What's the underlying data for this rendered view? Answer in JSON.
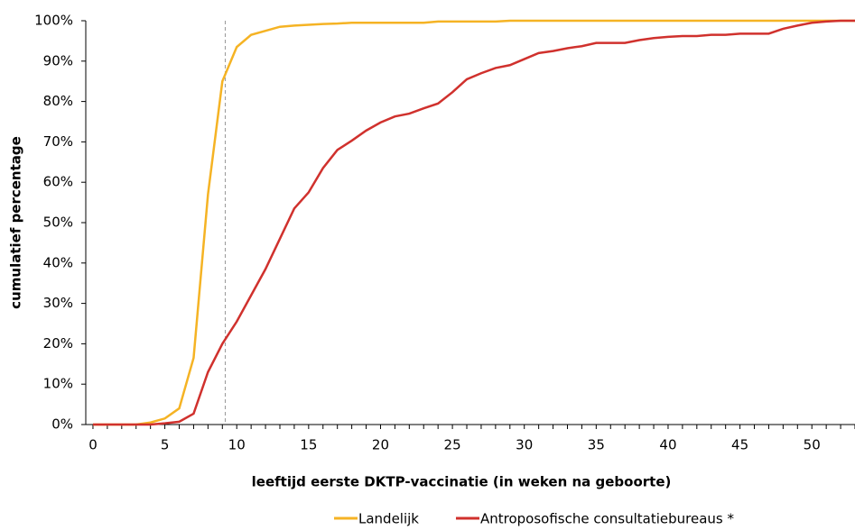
{
  "chart_data": {
    "type": "line",
    "xlabel": "leeftijd eerste DKTP-vaccinatie (in weken na geboorte)",
    "ylabel": "cumulatief percentage",
    "x": [
      0,
      1,
      2,
      3,
      4,
      5,
      6,
      7,
      8,
      9,
      10,
      11,
      12,
      13,
      14,
      15,
      16,
      17,
      18,
      19,
      20,
      21,
      22,
      23,
      24,
      25,
      26,
      27,
      28,
      29,
      30,
      31,
      32,
      33,
      34,
      35,
      36,
      37,
      38,
      39,
      40,
      41,
      42,
      43,
      44,
      45,
      46,
      47,
      48,
      49,
      50,
      51,
      52,
      53
    ],
    "series": [
      {
        "name": "Landelijk",
        "color": "#f5b324",
        "values": [
          0,
          0,
          0,
          0,
          0.5,
          1.5,
          4,
          16.5,
          57,
          85,
          93.5,
          96.5,
          97.5,
          98.5,
          98.8,
          99,
          99.2,
          99.3,
          99.5,
          99.5,
          99.5,
          99.5,
          99.5,
          99.5,
          99.8,
          99.8,
          99.8,
          99.8,
          99.8,
          100,
          100,
          100,
          100,
          100,
          100,
          100,
          100,
          100,
          100,
          100,
          100,
          100,
          100,
          100,
          100,
          100,
          100,
          100,
          100,
          100,
          100,
          100,
          100,
          100
        ]
      },
      {
        "name": "Antroposofische consultatiebureaus *",
        "color": "#d0312d",
        "values": [
          0,
          0,
          0,
          0,
          0,
          0.3,
          0.7,
          2.7,
          13,
          20,
          25.5,
          32,
          38.5,
          46,
          53.5,
          57.5,
          63.5,
          68,
          70.3,
          72.8,
          74.8,
          76.3,
          77,
          78.3,
          79.5,
          82.3,
          85.5,
          87,
          88.3,
          89,
          90.5,
          92,
          92.5,
          93.2,
          93.7,
          94.5,
          94.5,
          94.5,
          95.2,
          95.7,
          96,
          96.2,
          96.2,
          96.5,
          96.5,
          96.8,
          96.8,
          96.8,
          98,
          98.8,
          99.5,
          99.8,
          100,
          100
        ]
      }
    ],
    "xlim": [
      -0.5,
      53
    ],
    "xticks": [
      0,
      5,
      10,
      15,
      20,
      25,
      30,
      35,
      40,
      45,
      50
    ],
    "ylim": [
      0,
      100
    ],
    "yticks": [
      {
        "value": 0,
        "label": "0%"
      },
      {
        "value": 10,
        "label": "10%"
      },
      {
        "value": 20,
        "label": "20%"
      },
      {
        "value": 30,
        "label": "30%"
      },
      {
        "value": 40,
        "label": "40%"
      },
      {
        "value": 50,
        "label": "50%"
      },
      {
        "value": 60,
        "label": "60%"
      },
      {
        "value": 70,
        "label": "70%"
      },
      {
        "value": 80,
        "label": "80%"
      },
      {
        "value": 90,
        "label": "90%"
      },
      {
        "value": 100,
        "label": "100%"
      }
    ],
    "vline_x": 9.2,
    "legend": "bottom"
  }
}
